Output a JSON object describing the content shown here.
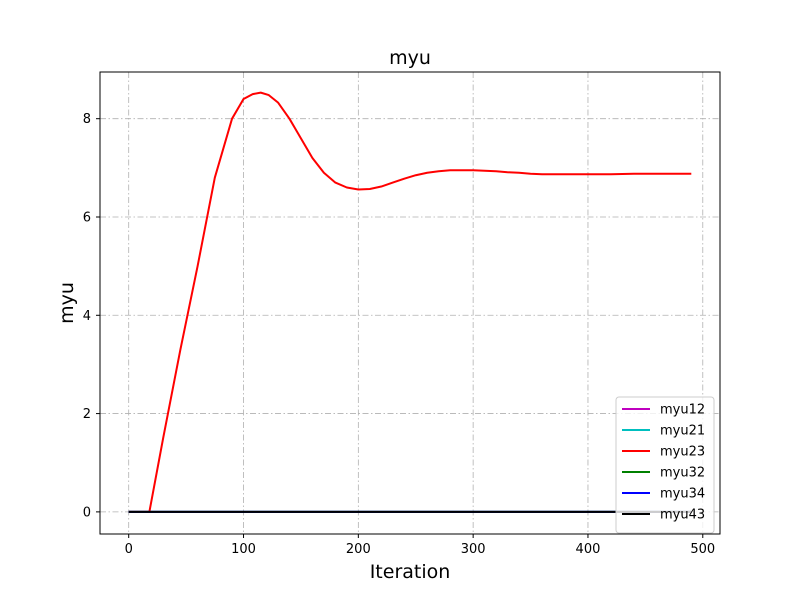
{
  "chart_data": {
    "type": "line",
    "title": "myu",
    "xlabel": "Iteration",
    "ylabel": "myu",
    "xlim": [
      -25,
      515
    ],
    "ylim": [
      -0.45,
      8.95
    ],
    "xticks": [
      0,
      100,
      200,
      300,
      400,
      500
    ],
    "yticks": [
      0,
      2,
      4,
      6,
      8
    ],
    "grid": true,
    "grid_style": "dash-dot",
    "legend_position": "lower right",
    "series": [
      {
        "name": "myu12",
        "color": "#bf00bf",
        "x": [
          0,
          490
        ],
        "y": [
          0,
          0
        ]
      },
      {
        "name": "myu21",
        "color": "#00bfbf",
        "x": [
          0,
          490
        ],
        "y": [
          0,
          0
        ]
      },
      {
        "name": "myu23",
        "color": "#ff0000",
        "x": [
          0,
          18,
          30,
          45,
          60,
          75,
          90,
          100,
          108,
          115,
          122,
          130,
          140,
          150,
          160,
          170,
          180,
          190,
          200,
          210,
          220,
          230,
          240,
          250,
          260,
          270,
          280,
          290,
          300,
          310,
          320,
          330,
          340,
          350,
          360,
          370,
          380,
          390,
          400,
          420,
          440,
          460,
          490
        ],
        "y": [
          0,
          0,
          1.5,
          3.3,
          5.0,
          6.8,
          8.0,
          8.4,
          8.5,
          8.53,
          8.48,
          8.33,
          8.0,
          7.6,
          7.2,
          6.9,
          6.7,
          6.6,
          6.56,
          6.57,
          6.62,
          6.7,
          6.78,
          6.85,
          6.9,
          6.93,
          6.95,
          6.95,
          6.95,
          6.94,
          6.93,
          6.91,
          6.9,
          6.88,
          6.87,
          6.87,
          6.87,
          6.87,
          6.87,
          6.87,
          6.88,
          6.88,
          6.88
        ]
      },
      {
        "name": "myu32",
        "color": "#008000",
        "x": [
          0,
          490
        ],
        "y": [
          0,
          0
        ]
      },
      {
        "name": "myu34",
        "color": "#0000ff",
        "x": [
          0,
          490
        ],
        "y": [
          0,
          0
        ]
      },
      {
        "name": "myu43",
        "color": "#000000",
        "x": [
          0,
          490
        ],
        "y": [
          0,
          0
        ]
      }
    ]
  }
}
